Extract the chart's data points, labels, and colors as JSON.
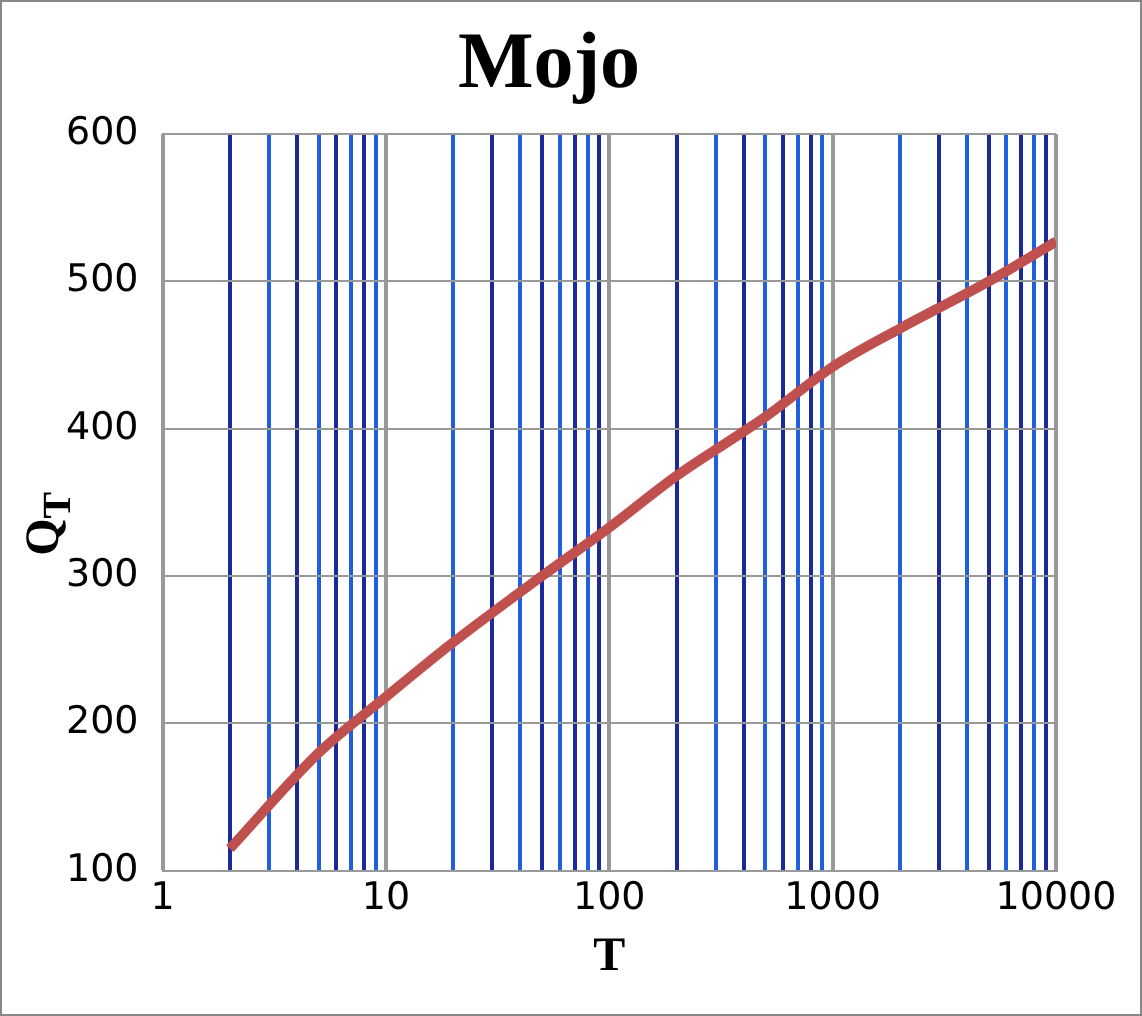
{
  "chart_data": {
    "type": "line",
    "title": "Mojo",
    "xlabel": "T",
    "ylabel": "Q$_{T}$",
    "x": [
      2,
      5,
      10,
      20,
      50,
      100,
      200,
      500,
      1000,
      2000,
      5000,
      10000
    ],
    "series": [
      {
        "color": "#c0504d",
        "values": [
          115,
          180,
          218,
          255,
          300,
          333,
          368,
          408,
          442,
          468,
          500,
          527
        ]
      }
    ],
    "log": "x",
    "xlim": [
      1,
      10000
    ],
    "ylim": [
      100,
      600
    ],
    "xticks": [
      1,
      {
        "value": 2,
        "label": null
      },
      {
        "value": 3,
        "label": null
      },
      {
        "value": 4,
        "label": null
      },
      {
        "value": 5,
        "label": null
      },
      {
        "value": 6,
        "label": null
      },
      {
        "value": 7,
        "label": null
      },
      {
        "value": 8,
        "label": null
      },
      {
        "value": 9,
        "label": null
      },
      10,
      {
        "value": 20,
        "label": null
      },
      {
        "value": 30,
        "label": null
      },
      {
        "value": 40,
        "label": null
      },
      {
        "value": 50,
        "label": null
      },
      {
        "value": 60,
        "label": null
      },
      {
        "value": 70,
        "label": null
      },
      {
        "value": 80,
        "label": null
      },
      {
        "value": 90,
        "label": null
      },
      100,
      {
        "value": 200,
        "label": null
      },
      {
        "value": 300,
        "label": null
      },
      {
        "value": 400,
        "label": null
      },
      {
        "value": 500,
        "label": null
      },
      {
        "value": 600,
        "label": null
      },
      {
        "value": 700,
        "label": null
      },
      {
        "value": 800,
        "label": null
      },
      {
        "value": 900,
        "label": null
      },
      1000,
      {
        "value": 2000,
        "label": null
      },
      {
        "value": 3000,
        "label": null
      },
      {
        "value": 4000,
        "label": null
      },
      {
        "value": 5000,
        "label": null
      },
      {
        "value": 6000,
        "label": null
      },
      {
        "value": 7000,
        "label": null
      },
      {
        "value": 8000,
        "label": null
      },
      {
        "value": 9000,
        "label": null
      },
      10000
    ],
    "yticks": [
      100,
      200,
      300,
      400,
      500,
      600
    ],
    "grid": true,
    "legend": false,
    "marker": "none",
    "line_style": "solid"
  }
}
